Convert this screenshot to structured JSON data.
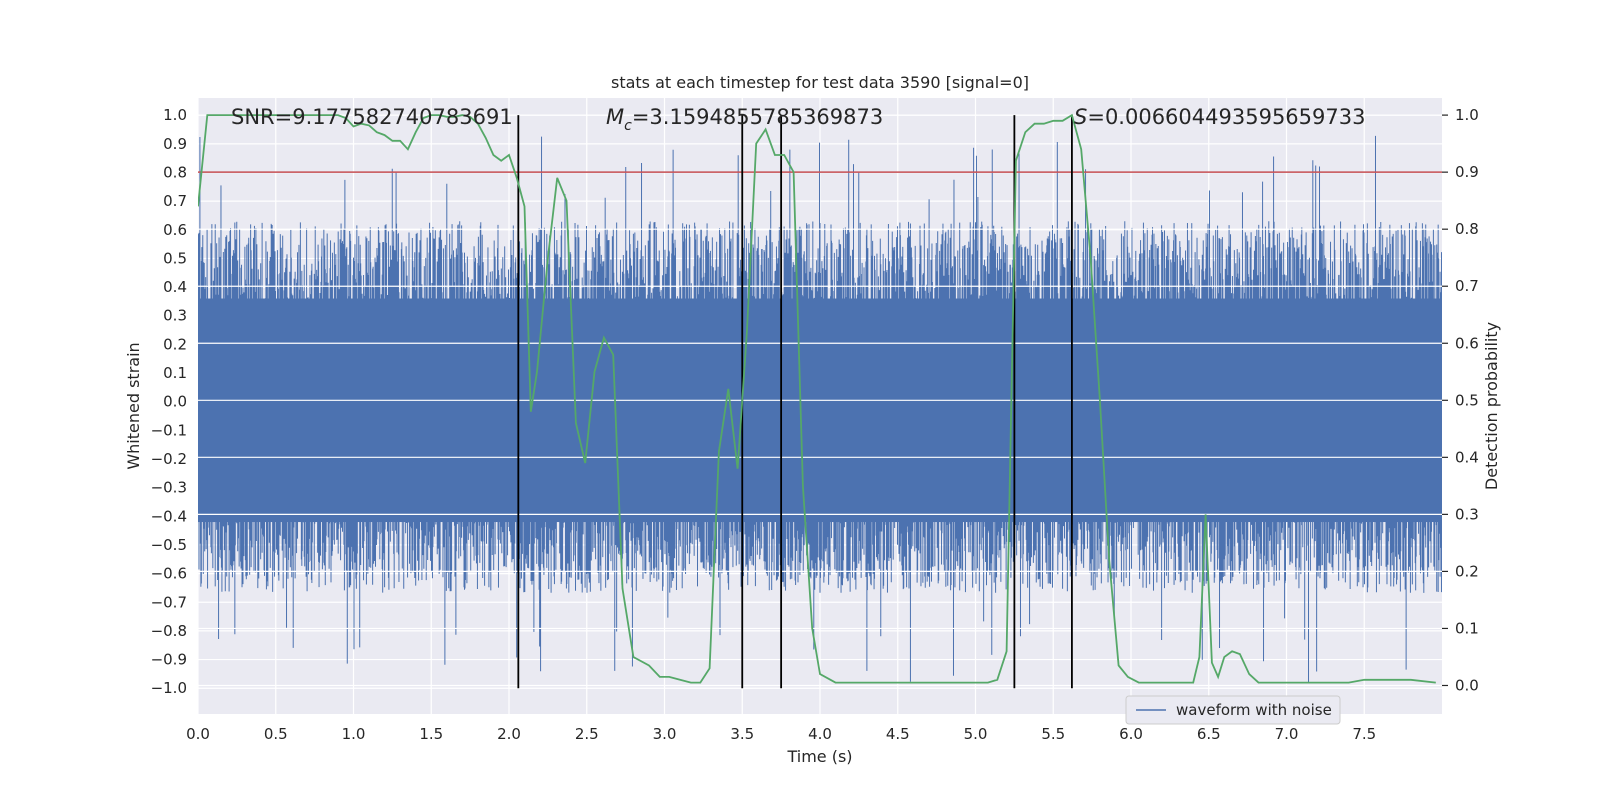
{
  "chart_data": {
    "type": "line",
    "title": "stats at each timestep for test data 3590 [signal=0]",
    "xlabel": "Time (s)",
    "ylabel": "Whitened strain",
    "y2label": "Detection probability",
    "xlim": [
      0,
      8
    ],
    "ylim": [
      -1.09,
      1.06
    ],
    "y2lim": [
      -0.05,
      1.03
    ],
    "xticks": [
      0.0,
      0.5,
      1.0,
      1.5,
      2.0,
      2.5,
      3.0,
      3.5,
      4.0,
      4.5,
      5.0,
      5.5,
      6.0,
      6.5,
      7.0,
      7.5
    ],
    "xtick_labels": [
      "0.0",
      "0.5",
      "1.0",
      "1.5",
      "2.0",
      "2.5",
      "3.0",
      "3.5",
      "4.0",
      "4.5",
      "5.0",
      "5.5",
      "6.0",
      "6.5",
      "7.0",
      "7.5"
    ],
    "yticks": [
      -1.0,
      -0.9,
      -0.8,
      -0.7,
      -0.6,
      -0.5,
      -0.4,
      -0.3,
      -0.2,
      -0.1,
      0.0,
      0.1,
      0.2,
      0.3,
      0.4,
      0.5,
      0.6,
      0.7,
      0.8,
      0.9,
      1.0
    ],
    "ytick_labels": [
      "−1.0",
      "−0.9",
      "−0.8",
      "−0.7",
      "−0.6",
      "−0.5",
      "−0.4",
      "−0.3",
      "−0.2",
      "−0.1",
      "0.0",
      "0.1",
      "0.2",
      "0.3",
      "0.4",
      "0.5",
      "0.6",
      "0.7",
      "0.8",
      "0.9",
      "1.0"
    ],
    "y2ticks": [
      0.0,
      0.1,
      0.2,
      0.3,
      0.4,
      0.5,
      0.6,
      0.7,
      0.8,
      0.9,
      1.0
    ],
    "y2tick_labels": [
      "0.0",
      "0.1",
      "0.2",
      "0.3",
      "0.4",
      "0.5",
      "0.6",
      "0.7",
      "0.8",
      "0.9",
      "1.0"
    ],
    "annotations": {
      "snr": "SNR=9.177582740783691",
      "mc_symbol": "M",
      "mc_sub": "c",
      "mc_value": "=3.1594855785369873",
      "s_symbol": "S",
      "s_value": "=0.006604493595659733"
    },
    "threshold": {
      "value": 0.9,
      "axis": "y2",
      "color": "#c44e52"
    },
    "vertical_lines": [
      2.06,
      3.5,
      3.75,
      5.25,
      5.62
    ],
    "series": [
      {
        "name": "waveform with noise",
        "axis": "y",
        "color": "#4c72b0",
        "kind": "dense-noise",
        "core_band": [
          -0.42,
          0.36
        ],
        "max_peak": 0.93,
        "min_trough": -0.98,
        "duration_s": 8
      },
      {
        "name": "detection probability",
        "axis": "y2",
        "color": "#55a868",
        "x": [
          0.0,
          0.06,
          0.12,
          0.2,
          0.4,
          0.6,
          0.8,
          0.9,
          0.95,
          1.0,
          1.05,
          1.1,
          1.15,
          1.2,
          1.25,
          1.3,
          1.35,
          1.4,
          1.45,
          1.5,
          1.55,
          1.6,
          1.65,
          1.7,
          1.75,
          1.8,
          1.85,
          1.9,
          1.95,
          2.0,
          2.05,
          2.1,
          2.14,
          2.18,
          2.25,
          2.31,
          2.37,
          2.43,
          2.49,
          2.55,
          2.61,
          2.67,
          2.73,
          2.8,
          2.9,
          2.97,
          3.03,
          3.1,
          3.17,
          3.23,
          3.29,
          3.35,
          3.41,
          3.47,
          3.53,
          3.59,
          3.65,
          3.71,
          3.77,
          3.83,
          3.89,
          3.95,
          4.0,
          4.1,
          4.3,
          4.5,
          4.7,
          4.9,
          5.02,
          5.08,
          5.14,
          5.2,
          5.26,
          5.32,
          5.38,
          5.44,
          5.5,
          5.56,
          5.62,
          5.68,
          5.74,
          5.8,
          5.86,
          5.92,
          5.98,
          6.05,
          6.2,
          6.4,
          6.44,
          6.48,
          6.52,
          6.56,
          6.6,
          6.65,
          6.7,
          6.76,
          6.82,
          6.9,
          7.0,
          7.2,
          7.4,
          7.5,
          7.6,
          7.8,
          7.96
        ],
        "y": [
          0.84,
          1.0,
          1.0,
          1.0,
          1.0,
          1.0,
          1.0,
          1.0,
          0.995,
          0.98,
          0.985,
          0.982,
          0.97,
          0.965,
          0.955,
          0.955,
          0.94,
          0.97,
          0.995,
          1.0,
          1.0,
          0.997,
          0.997,
          1.0,
          0.997,
          0.985,
          0.96,
          0.93,
          0.92,
          0.93,
          0.89,
          0.84,
          0.48,
          0.55,
          0.75,
          0.89,
          0.85,
          0.46,
          0.39,
          0.55,
          0.61,
          0.58,
          0.17,
          0.05,
          0.035,
          0.015,
          0.015,
          0.01,
          0.005,
          0.005,
          0.03,
          0.41,
          0.52,
          0.38,
          0.62,
          0.95,
          0.975,
          0.93,
          0.93,
          0.9,
          0.35,
          0.1,
          0.02,
          0.005,
          0.005,
          0.005,
          0.005,
          0.005,
          0.005,
          0.005,
          0.01,
          0.06,
          0.92,
          0.97,
          0.985,
          0.985,
          0.99,
          0.99,
          1.0,
          0.94,
          0.75,
          0.5,
          0.22,
          0.035,
          0.015,
          0.005,
          0.005,
          0.005,
          0.05,
          0.3,
          0.04,
          0.015,
          0.05,
          0.06,
          0.055,
          0.02,
          0.005,
          0.005,
          0.005,
          0.005,
          0.005,
          0.01,
          0.01,
          0.01,
          0.005
        ]
      }
    ],
    "legend": {
      "entries": [
        "waveform with noise"
      ],
      "placement": "lower-right"
    }
  }
}
